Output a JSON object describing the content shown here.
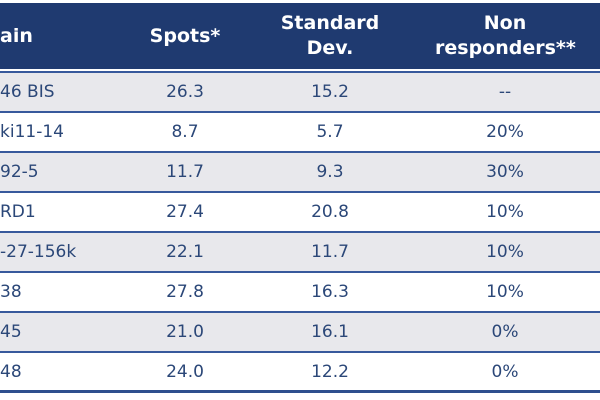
{
  "chart_data": {
    "type": "table",
    "columns": [
      {
        "label": "ain",
        "align": "left"
      },
      {
        "label": "Spots*",
        "align": "center"
      },
      {
        "label": "Standard Dev.",
        "align": "center"
      },
      {
        "label": "Non responders**",
        "align": "center"
      }
    ],
    "rows": [
      {
        "strain": "46 BIS",
        "spots": "26.3",
        "std_dev": "15.2",
        "non_responders": "--"
      },
      {
        "strain": "ki11-14",
        "spots": "8.7",
        "std_dev": "5.7",
        "non_responders": "20%"
      },
      {
        "strain": "92-5",
        "spots": "11.7",
        "std_dev": "9.3",
        "non_responders": "30%"
      },
      {
        "strain": "RD1",
        "spots": "27.4",
        "std_dev": "20.8",
        "non_responders": "10%"
      },
      {
        "strain": "-27-156k",
        "spots": "22.1",
        "std_dev": "11.7",
        "non_responders": "10%"
      },
      {
        "strain": "38",
        "spots": "27.8",
        "std_dev": "16.3",
        "non_responders": "10%"
      },
      {
        "strain": "45",
        "spots": "21.0",
        "std_dev": "16.1",
        "non_responders": "0%"
      },
      {
        "strain": "48",
        "spots": "24.0",
        "std_dev": "12.2",
        "non_responders": "0%"
      }
    ],
    "layout": {
      "banded_rows": true,
      "first_band": "gray"
    }
  },
  "colors": {
    "header_bg": "#1f3a70",
    "header_text": "#ffffff",
    "body_text": "#2b4778",
    "stripe": "#e8e8ec",
    "row_white": "#ffffff",
    "divider": "#37599c",
    "bottom_line": "#2e4f8e"
  }
}
